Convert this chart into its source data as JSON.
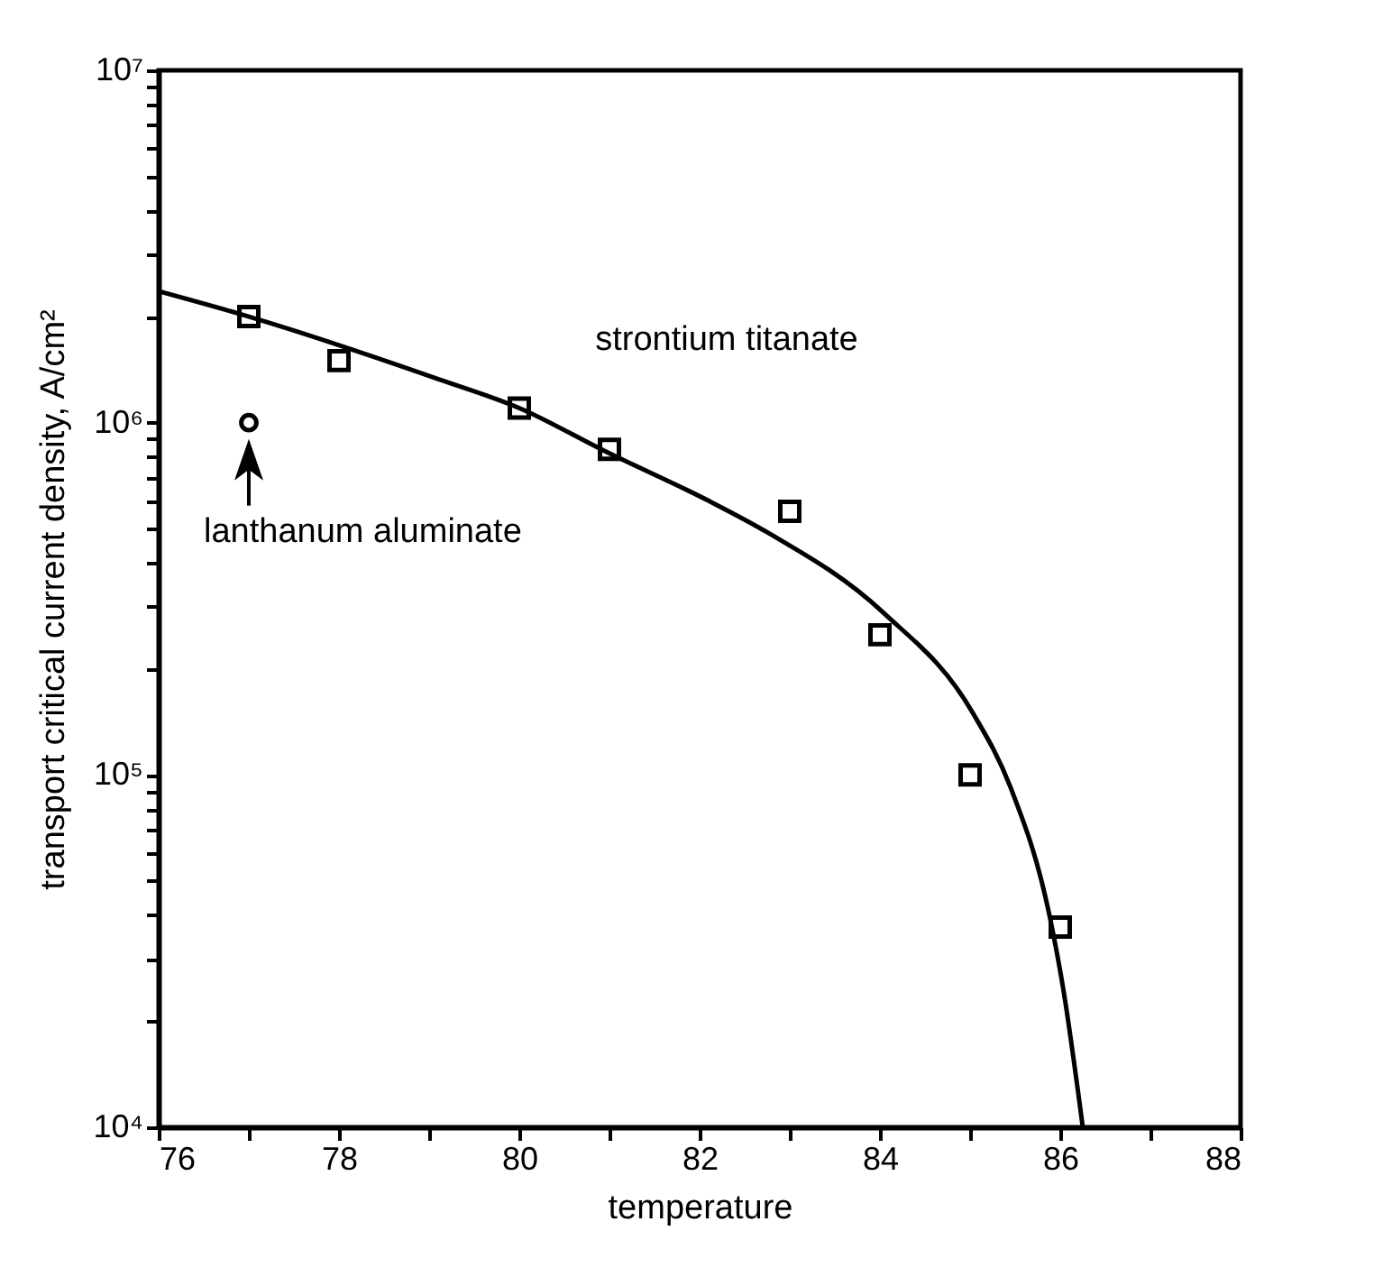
{
  "chart_data": {
    "type": "scatter",
    "xlabel": "temperature",
    "ylabel": "transport critical current density, A/cm²",
    "log": "y",
    "xlim": [
      76,
      88
    ],
    "xticks": [
      76,
      {
        "value": 77,
        "label": null
      },
      78,
      {
        "value": 79,
        "label": null
      },
      80,
      {
        "value": 81,
        "label": null
      },
      82,
      {
        "value": 83,
        "label": null
      },
      84,
      {
        "value": 85,
        "label": null
      },
      86,
      {
        "value": 87,
        "label": null
      },
      88
    ],
    "ylim": [
      10000,
      10000000
    ],
    "yticks": [
      {
        "value": 10000,
        "label": "10⁴"
      },
      {
        "value": 20000,
        "label": null
      },
      {
        "value": 30000,
        "label": null
      },
      {
        "value": 40000,
        "label": null
      },
      {
        "value": 50000,
        "label": null
      },
      {
        "value": 60000,
        "label": null
      },
      {
        "value": 70000,
        "label": null
      },
      {
        "value": 80000,
        "label": null
      },
      {
        "value": 90000,
        "label": null
      },
      {
        "value": 100000,
        "label": "10⁵"
      },
      {
        "value": 200000,
        "label": null
      },
      {
        "value": 300000,
        "label": null
      },
      {
        "value": 400000,
        "label": null
      },
      {
        "value": 500000,
        "label": null
      },
      {
        "value": 600000,
        "label": null
      },
      {
        "value": 700000,
        "label": null
      },
      {
        "value": 800000,
        "label": null
      },
      {
        "value": 900000,
        "label": null
      },
      {
        "value": 1000000,
        "label": "10⁶"
      },
      {
        "value": 2000000,
        "label": null
      },
      {
        "value": 3000000,
        "label": null
      },
      {
        "value": 4000000,
        "label": null
      },
      {
        "value": 5000000,
        "label": null
      },
      {
        "value": 6000000,
        "label": null
      },
      {
        "value": 7000000,
        "label": null
      },
      {
        "value": 8000000,
        "label": null
      },
      {
        "value": 9000000,
        "label": null
      },
      {
        "value": 10000000,
        "label": "10⁷"
      }
    ],
    "grid": false,
    "legend": false,
    "annotations": [
      {
        "text": "lanthanum aluminate",
        "x": 77,
        "y": 1000000
      }
    ],
    "series": [
      {
        "type": "line",
        "color": "#000000",
        "marker": "none",
        "line_style": "solid",
        "x": [
          76,
          77,
          79.1,
          80,
          80.95,
          82.1,
          82.74,
          84.03,
          85.03,
          85.45,
          85.88,
          86.03,
          86.25
        ],
        "values": [
          2360000,
          2000000,
          1330000,
          1100000,
          830000,
          600000,
          490000,
          290000,
          150000,
          92000,
          40000,
          25000,
          10000
        ]
      },
      {
        "name": "strontium titanate",
        "type": "scatter",
        "marker": "square",
        "color": "#000000",
        "x": [
          77,
          78,
          80,
          81,
          83,
          84,
          85,
          86
        ],
        "values": [
          2000000,
          1500000,
          1100000,
          840000,
          560000,
          250000,
          100000,
          37000
        ]
      },
      {
        "type": "scatter",
        "marker": "circle",
        "color": "#000000",
        "x": [
          77
        ],
        "values": [
          1000000
        ]
      }
    ]
  }
}
